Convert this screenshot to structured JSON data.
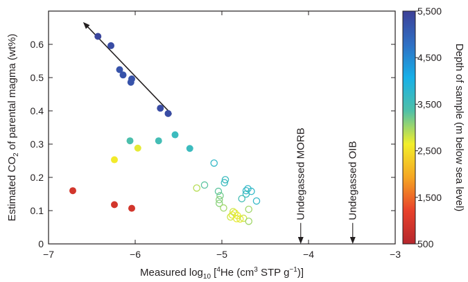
{
  "chart_data": {
    "type": "scatter",
    "xlabel_parts": [
      "Measured log",
      "10",
      " [",
      "4",
      "He (cm",
      "3",
      " STP g",
      "−1",
      ")]"
    ],
    "ylabel_parts": [
      "Estimated CO",
      "2",
      " of parental magma (wt%)"
    ],
    "xlim": [
      -7,
      -3
    ],
    "ylim": [
      0,
      0.7
    ],
    "xticks": [
      -7,
      -6,
      -5,
      -4,
      -3
    ],
    "xtick_labels": [
      "−7",
      "−6",
      "−5",
      "−4",
      "−3"
    ],
    "yticks": [
      0,
      0.1,
      0.2,
      0.3,
      0.4,
      0.5,
      0.6
    ],
    "ytick_labels": [
      "0",
      "0.1",
      "0.2",
      "0.3",
      "0.4",
      "0.5",
      "0.6"
    ],
    "colorbar": {
      "label": "Depth of sample (m below sea level)",
      "min": 500,
      "max": 5500,
      "ticks": [
        500,
        1500,
        2500,
        3500,
        4500,
        5500
      ],
      "tick_labels": [
        "500",
        "1,500",
        "2,500",
        "3,500",
        "4,500",
        "5,500"
      ],
      "colors": [
        "#b5272d",
        "#e8412b",
        "#f5a623",
        "#f2ee2a",
        "#4fc0a8",
        "#17b0e8",
        "#2f6fc4",
        "#3d3f97"
      ]
    },
    "filled_points": [
      {
        "x": -6.43,
        "y": 0.624,
        "depth": 5400
      },
      {
        "x": -6.28,
        "y": 0.596,
        "depth": 5300
      },
      {
        "x": -6.18,
        "y": 0.524,
        "depth": 5200
      },
      {
        "x": -6.14,
        "y": 0.508,
        "depth": 5200
      },
      {
        "x": -6.04,
        "y": 0.496,
        "depth": 5200
      },
      {
        "x": -6.05,
        "y": 0.486,
        "depth": 5200
      },
      {
        "x": -5.71,
        "y": 0.408,
        "depth": 5300
      },
      {
        "x": -5.62,
        "y": 0.392,
        "depth": 5300
      },
      {
        "x": -5.54,
        "y": 0.328,
        "depth": 3600
      },
      {
        "x": -5.73,
        "y": 0.31,
        "depth": 3500
      },
      {
        "x": -6.06,
        "y": 0.31,
        "depth": 3400
      },
      {
        "x": -5.37,
        "y": 0.287,
        "depth": 3600
      },
      {
        "x": -5.97,
        "y": 0.288,
        "depth": 2700
      },
      {
        "x": -6.24,
        "y": 0.253,
        "depth": 2600
      },
      {
        "x": -6.72,
        "y": 0.16,
        "depth": 900
      },
      {
        "x": -6.24,
        "y": 0.118,
        "depth": 900
      },
      {
        "x": -6.04,
        "y": 0.107,
        "depth": 900
      }
    ],
    "open_points": [
      {
        "x": -5.09,
        "y": 0.243,
        "depth": 3700
      },
      {
        "x": -4.96,
        "y": 0.193,
        "depth": 3600
      },
      {
        "x": -4.97,
        "y": 0.184,
        "depth": 3600
      },
      {
        "x": -5.2,
        "y": 0.177,
        "depth": 3300
      },
      {
        "x": -5.29,
        "y": 0.168,
        "depth": 2900
      },
      {
        "x": -4.7,
        "y": 0.166,
        "depth": 3700
      },
      {
        "x": -4.72,
        "y": 0.16,
        "depth": 3700
      },
      {
        "x": -4.66,
        "y": 0.158,
        "depth": 3700
      },
      {
        "x": -4.72,
        "y": 0.15,
        "depth": 3600
      },
      {
        "x": -4.77,
        "y": 0.136,
        "depth": 3500
      },
      {
        "x": -4.6,
        "y": 0.129,
        "depth": 3700
      },
      {
        "x": -5.04,
        "y": 0.158,
        "depth": 3300
      },
      {
        "x": -5.02,
        "y": 0.145,
        "depth": 3200
      },
      {
        "x": -5.03,
        "y": 0.133,
        "depth": 3100
      },
      {
        "x": -5.03,
        "y": 0.122,
        "depth": 3100
      },
      {
        "x": -4.98,
        "y": 0.108,
        "depth": 3000
      },
      {
        "x": -4.69,
        "y": 0.104,
        "depth": 3000
      },
      {
        "x": -4.87,
        "y": 0.097,
        "depth": 2800
      },
      {
        "x": -4.85,
        "y": 0.093,
        "depth": 2700
      },
      {
        "x": -4.88,
        "y": 0.087,
        "depth": 2700
      },
      {
        "x": -4.82,
        "y": 0.085,
        "depth": 2700
      },
      {
        "x": -4.9,
        "y": 0.081,
        "depth": 2800
      },
      {
        "x": -4.83,
        "y": 0.076,
        "depth": 2700
      },
      {
        "x": -4.79,
        "y": 0.075,
        "depth": 2700
      },
      {
        "x": -4.75,
        "y": 0.077,
        "depth": 2800
      },
      {
        "x": -4.69,
        "y": 0.068,
        "depth": 3000
      }
    ],
    "trend_arrow": {
      "from": [
        -5.58,
        0.39
      ],
      "to": [
        -6.59,
        0.664
      ]
    },
    "annotations": [
      {
        "label": "Undegassed MORB",
        "x": -4.09,
        "arrow_from_y": 0.063,
        "arrow_to_y": 0.0
      },
      {
        "label": "Undegassed OIB",
        "x": -3.49,
        "arrow_from_y": 0.063,
        "arrow_to_y": 0.0
      }
    ]
  }
}
